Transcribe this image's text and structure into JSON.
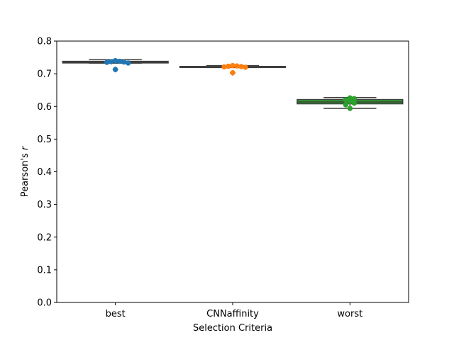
{
  "chart_data": {
    "type": "box",
    "xlabel": "Selection Criteria",
    "ylabel_prefix": "Pearson's ",
    "ylabel_var": "r",
    "ylim": [
      0.0,
      0.8
    ],
    "yticks": [
      0.0,
      0.1,
      0.2,
      0.3,
      0.4,
      0.5,
      0.6,
      0.7,
      0.8
    ],
    "ytick_labels": [
      "0.0",
      "0.1",
      "0.2",
      "0.3",
      "0.4",
      "0.5",
      "0.6",
      "0.7",
      "0.8"
    ],
    "categories": [
      "best",
      "CNNaffinity",
      "worst"
    ],
    "grid": false,
    "boxes": [
      {
        "category": "best",
        "whisker_low": 0.7325,
        "q1": 0.733,
        "median": 0.7355,
        "q3": 0.738,
        "whisker_high": 0.743,
        "outliers": [
          0.713
        ],
        "color": "#1f77b4",
        "points": [
          0.74,
          0.738,
          0.737,
          0.736,
          0.735,
          0.733,
          0.713
        ]
      },
      {
        "category": "CNNaffinity",
        "whisker_low": 0.719,
        "q1": 0.7195,
        "median": 0.7215,
        "q3": 0.7225,
        "whisker_high": 0.725,
        "outliers": [
          0.703
        ],
        "color": "#ff7f0e",
        "points": [
          0.725,
          0.724,
          0.723,
          0.722,
          0.721,
          0.72,
          0.703
        ]
      },
      {
        "category": "worst",
        "whisker_low": 0.594,
        "q1": 0.608,
        "median": 0.6135,
        "q3": 0.621,
        "whisker_high": 0.627,
        "outliers": [],
        "color": "#2ca02c",
        "points": [
          0.626,
          0.624,
          0.62,
          0.615,
          0.61,
          0.605,
          0.594
        ]
      }
    ]
  }
}
